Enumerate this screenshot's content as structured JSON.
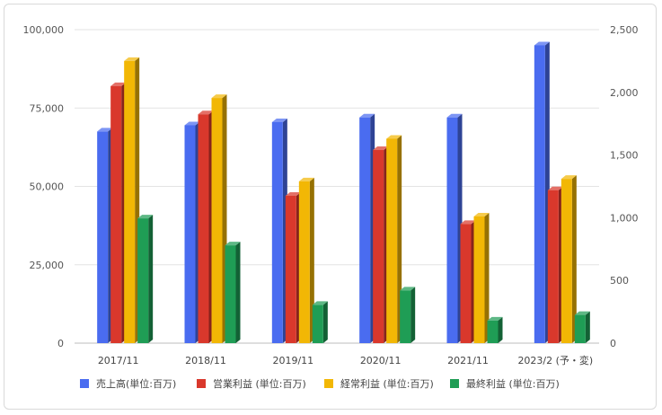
{
  "chart_data": {
    "type": "bar",
    "style": "3d",
    "categories": [
      "2017/11",
      "2018/11",
      "2019/11",
      "2020/11",
      "2021/11",
      "2023/2 (予・変)"
    ],
    "series": [
      {
        "name": "売上高(単位:百万)",
        "axis": "left",
        "color": "#4a6cf0",
        "values": [
          67500,
          69500,
          70500,
          72000,
          72000,
          95000
        ]
      },
      {
        "name": "営業利益 (単位:百万)",
        "axis": "right",
        "color": "#d9382c",
        "values": [
          2050,
          1825,
          1175,
          1540,
          950,
          1220
        ]
      },
      {
        "name": "経常利益 (単位:百万)",
        "axis": "right",
        "color": "#f2b705",
        "values": [
          2250,
          1955,
          1290,
          1630,
          1010,
          1310
        ]
      },
      {
        "name": "最終利益 (単位:百万)",
        "axis": "right",
        "color": "#1f9d55",
        "values": [
          995,
          780,
          305,
          420,
          180,
          225
        ]
      }
    ],
    "y_left": {
      "min": 0,
      "max": 100000,
      "ticks": [
        "0",
        "25,000",
        "50,000",
        "75,000",
        "100,000"
      ],
      "tick_values": [
        0,
        25000,
        50000,
        75000,
        100000
      ]
    },
    "y_right": {
      "min": 0,
      "max": 2500,
      "ticks": [
        "0",
        "500",
        "1,000",
        "1,500",
        "2,000",
        "2,500"
      ],
      "tick_values": [
        0,
        500,
        1000,
        1500,
        2000,
        2500
      ]
    },
    "grid": true,
    "legend_position": "bottom"
  }
}
